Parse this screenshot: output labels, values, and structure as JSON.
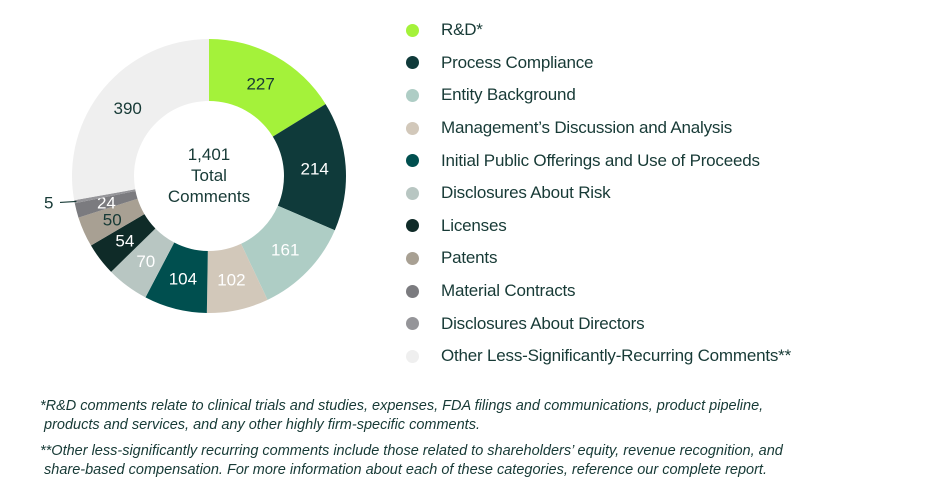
{
  "chart_data": {
    "type": "pie",
    "donut": true,
    "center_label": [
      "1,401",
      "Total",
      "Comments"
    ],
    "total": 1401,
    "start": "top, clockwise",
    "legend_placement": "right",
    "categories": [
      {
        "label": "R&D*",
        "value": 227,
        "color": "#a4f23a",
        "text_color": "#173a36"
      },
      {
        "label": "Process Compliance",
        "value": 214,
        "color": "#0f3a3a",
        "text_color": "#ffffff"
      },
      {
        "label": "Entity Background",
        "value": 161,
        "color": "#aecdc5",
        "text_color": "#ffffff"
      },
      {
        "label": "Management’s Discussion and Analysis",
        "value": 102,
        "color": "#d2c8ba",
        "text_color": "#ffffff"
      },
      {
        "label": "Initial Public Offerings and Use of Proceeds",
        "value": 104,
        "color": "#004f4f",
        "text_color": "#ffffff"
      },
      {
        "label": "Disclosures About Risk",
        "value": 70,
        "color": "#b8c6c2",
        "text_color": "#ffffff"
      },
      {
        "label": "Licenses",
        "value": 54,
        "color": "#0f2b28",
        "text_color": "#ffffff"
      },
      {
        "label": "Patents",
        "value": 50,
        "color": "#a8a093",
        "text_color": "#173a36"
      },
      {
        "label": "Material Contracts",
        "value": 24,
        "color": "#7b7b7f",
        "text_color": "#ffffff"
      },
      {
        "label": "Disclosures About Directors",
        "value": 5,
        "color": "#959599",
        "text_color": "#173a36",
        "label_outside": true
      },
      {
        "label": "Other Less-Significantly-Recurring Comments**",
        "value": 390,
        "color": "#efefef",
        "text_color": "#173a36"
      }
    ]
  },
  "footnotes": [
    [
      "*R&D comments relate to clinical trials and studies, expenses, FDA filings and communications, product pipeline,",
      "products and services, and any other highly firm-specific comments."
    ],
    [
      "**Other less-significantly recurring comments include those related to shareholders’ equity, revenue recognition, and",
      "share-based compensation. For more information about each of these categories, reference our complete report."
    ]
  ]
}
